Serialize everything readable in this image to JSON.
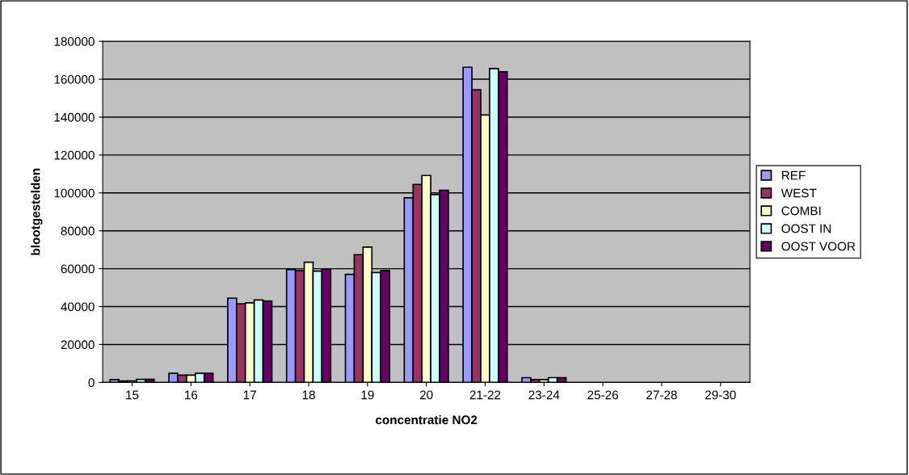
{
  "chart_data": {
    "type": "bar",
    "xlabel": "concentratie NO2",
    "ylabel": "blootgestelden",
    "categories": [
      "15",
      "16",
      "17",
      "18",
      "19",
      "20",
      "21-22",
      "23-24",
      "25-26",
      "27-28",
      "29-30"
    ],
    "series": [
      {
        "name": "REF",
        "color": "#9999ff",
        "values": [
          1500,
          4800,
          44500,
          59600,
          57000,
          97400,
          166300,
          2500,
          0,
          0,
          0
        ]
      },
      {
        "name": "WEST",
        "color": "#993366",
        "values": [
          800,
          3800,
          41500,
          59000,
          67400,
          104500,
          154500,
          1500,
          0,
          0,
          0
        ]
      },
      {
        "name": "COMBI",
        "color": "#ffffcc",
        "values": [
          800,
          3800,
          42000,
          63400,
          71400,
          109200,
          141100,
          1500,
          0,
          0,
          0
        ]
      },
      {
        "name": "OOST IN",
        "color": "#ccffff",
        "values": [
          1600,
          4800,
          43500,
          58700,
          58000,
          99100,
          165600,
          2500,
          0,
          0,
          0
        ]
      },
      {
        "name": "OOST VOOR",
        "color": "#660066",
        "values": [
          1600,
          4800,
          43000,
          59800,
          59000,
          101400,
          163900,
          2500,
          0,
          0,
          0
        ]
      }
    ],
    "ylim": [
      0,
      180000
    ],
    "yticks": [
      0,
      20000,
      40000,
      60000,
      80000,
      100000,
      120000,
      140000,
      160000,
      180000
    ],
    "grid": "y",
    "legend": "right"
  }
}
